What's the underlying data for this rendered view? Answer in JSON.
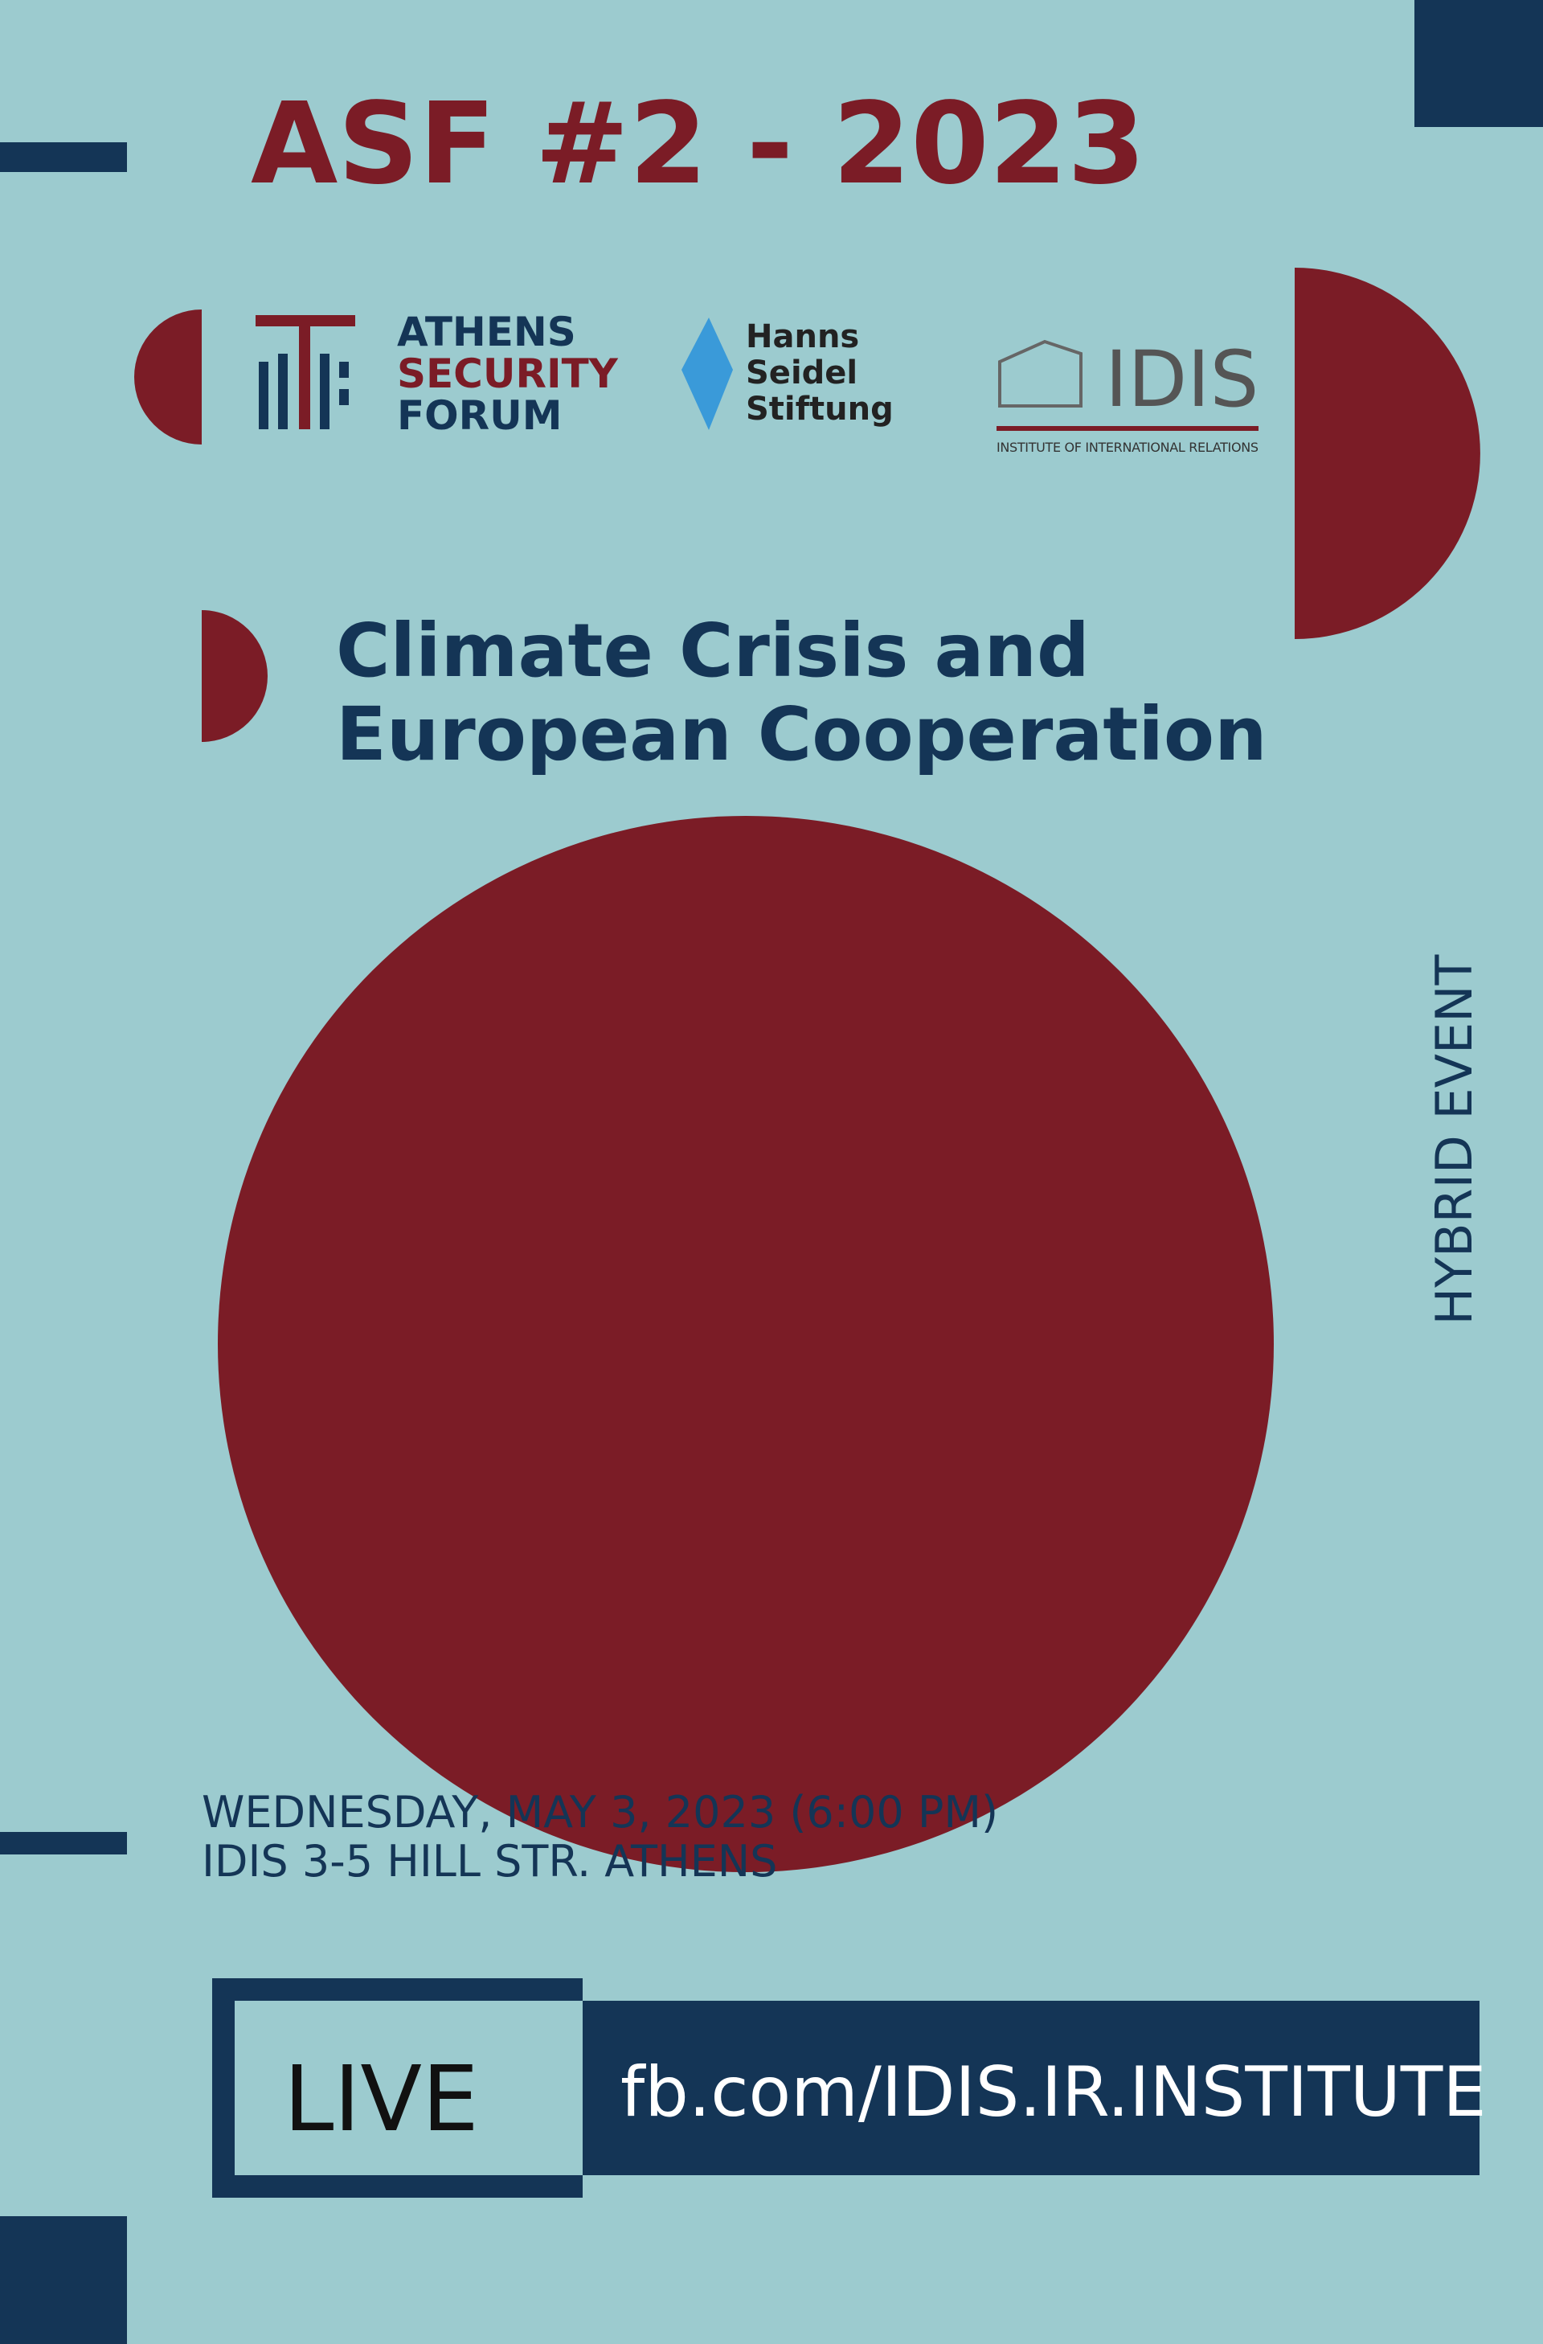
{
  "header": {
    "title": "ASF #2 - 2023"
  },
  "logos": {
    "asf": [
      "ATHENS",
      "SECURITY",
      "FORUM"
    ],
    "hss": [
      "Hanns",
      "Seidel",
      "Stiftung"
    ],
    "idis": {
      "name": "IDIS",
      "subtitle": "INSTITUTE OF INTERNATIONAL RELATIONS"
    }
  },
  "heading": [
    "Climate Crisis and",
    "European Cooperation"
  ],
  "side_label": "HYBRID EVENT",
  "details": [
    "WEDNESDAY, MAY 3, 2023 (6:00 PM)",
    "IDIS 3-5 HILL STR. ATHENS"
  ],
  "live": {
    "label": "LIVE",
    "url": "fb.com/IDIS.IR.INSTITUTE"
  }
}
